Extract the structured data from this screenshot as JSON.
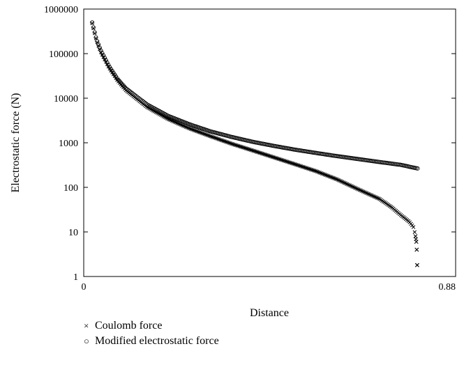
{
  "chart_data": {
    "type": "scatter",
    "title": "",
    "xlabel": "Distance",
    "ylabel": "Electrostatic force (N)",
    "x_scale": "linear",
    "y_scale": "log",
    "xlim": [
      0,
      0.88
    ],
    "ylim": [
      1,
      1000000
    ],
    "x_tick_labels": [
      "0",
      "0.88"
    ],
    "y_tick_labels": [
      "1",
      "10",
      "100",
      "1000",
      "10000",
      "100000",
      "1000000"
    ],
    "grid": false,
    "legend_position": "bottom-left",
    "series": [
      {
        "name": "Coulomb force",
        "marker": "cross",
        "points": [
          [
            0.02,
            480000
          ],
          [
            0.03,
            200000
          ],
          [
            0.04,
            110000
          ],
          [
            0.06,
            48000
          ],
          [
            0.08,
            25000
          ],
          [
            0.1,
            15000
          ],
          [
            0.15,
            6300
          ],
          [
            0.2,
            3400
          ],
          [
            0.25,
            2100
          ],
          [
            0.3,
            1400
          ],
          [
            0.35,
            950
          ],
          [
            0.4,
            670
          ],
          [
            0.45,
            470
          ],
          [
            0.5,
            330
          ],
          [
            0.55,
            230
          ],
          [
            0.6,
            150
          ],
          [
            0.65,
            90
          ],
          [
            0.7,
            55
          ],
          [
            0.73,
            35
          ],
          [
            0.75,
            24
          ],
          [
            0.77,
            17
          ],
          [
            0.78,
            13
          ],
          [
            0.783,
            10
          ],
          [
            0.785,
            8
          ],
          [
            0.787,
            6
          ],
          [
            0.788,
            4
          ],
          [
            0.789,
            1.8
          ]
        ]
      },
      {
        "name": "Modified electrostatic force",
        "marker": "circle",
        "points": [
          [
            0.02,
            500000
          ],
          [
            0.03,
            210000
          ],
          [
            0.04,
            120000
          ],
          [
            0.06,
            52000
          ],
          [
            0.08,
            27000
          ],
          [
            0.1,
            16500
          ],
          [
            0.15,
            7200
          ],
          [
            0.2,
            4000
          ],
          [
            0.25,
            2600
          ],
          [
            0.3,
            1800
          ],
          [
            0.35,
            1350
          ],
          [
            0.4,
            1050
          ],
          [
            0.45,
            850
          ],
          [
            0.5,
            700
          ],
          [
            0.55,
            590
          ],
          [
            0.6,
            500
          ],
          [
            0.65,
            430
          ],
          [
            0.7,
            370
          ],
          [
            0.75,
            320
          ],
          [
            0.79,
            265
          ]
        ]
      }
    ]
  }
}
